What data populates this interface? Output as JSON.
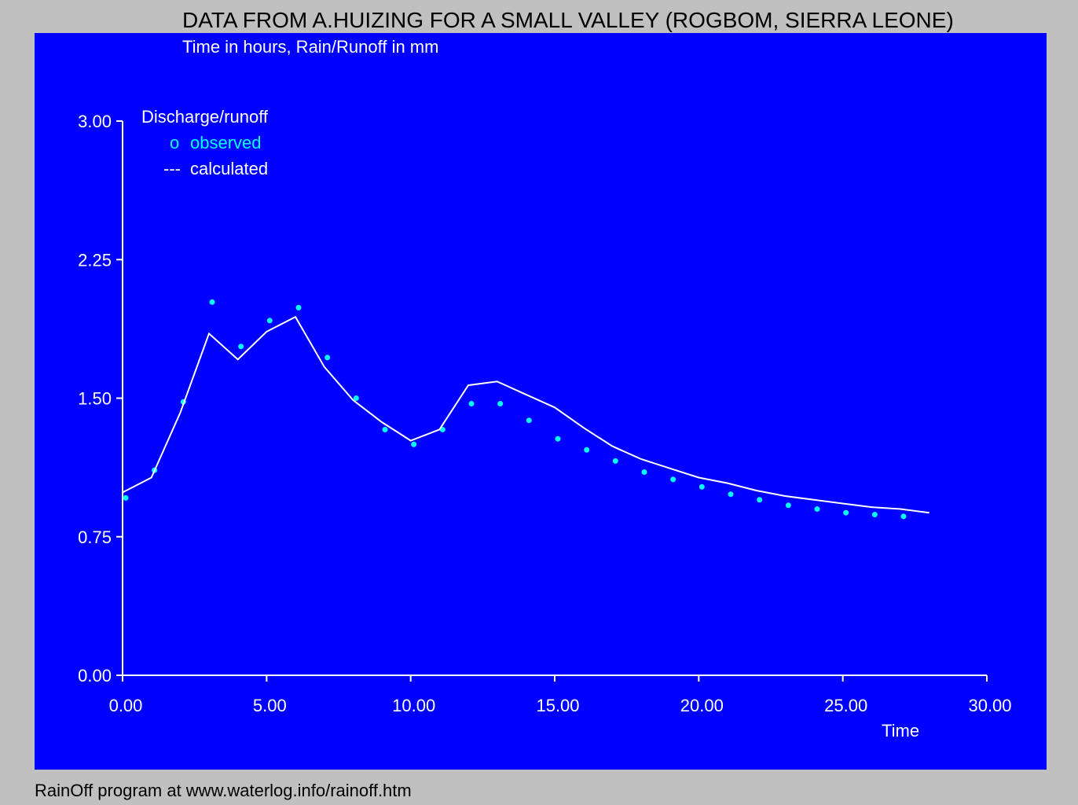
{
  "footer": "RainOff program at www.waterlog.info/rainoff.htm",
  "colors": {
    "window_bg": "#c0c0c0",
    "plot_bg": "#0000ff",
    "axes": "#ffffff",
    "observed": "#00ffff",
    "calculated": "#ffffff",
    "text": "#ffffff",
    "title": "#000000"
  },
  "chart_data": {
    "type": "line",
    "title": "DATA FROM A.HUIZING FOR A SMALL VALLEY (ROGBOM, SIERRA LEONE)",
    "subtitle": "Time in hours, Rain/Runoff in mm",
    "xlabel": "Time",
    "ylabel": "",
    "xlim": [
      0,
      30
    ],
    "ylim": [
      0,
      3
    ],
    "x_ticks": [
      "0.00",
      "5.00",
      "10.00",
      "15.00",
      "20.00",
      "25.00",
      "30.00"
    ],
    "y_ticks": [
      "0.00",
      "0.75",
      "1.50",
      "2.25",
      "3.00"
    ],
    "grid": false,
    "legend": {
      "title": "Discharge/runoff",
      "position": "top-left",
      "entries": [
        {
          "marker": "o",
          "label": "observed",
          "color": "#00ffff"
        },
        {
          "marker": "---",
          "label": "calculated",
          "color": "#ffffff"
        }
      ]
    },
    "series": [
      {
        "name": "observed",
        "style": "points",
        "x": [
          0,
          1,
          2,
          3,
          4,
          5,
          6,
          7,
          8,
          9,
          10,
          11,
          12,
          13,
          14,
          15,
          16,
          17,
          18,
          19,
          20,
          21,
          22,
          23,
          24,
          25,
          26,
          27
        ],
        "y": [
          0.96,
          1.11,
          1.48,
          2.02,
          1.78,
          1.92,
          1.99,
          1.72,
          1.5,
          1.33,
          1.25,
          1.33,
          1.47,
          1.47,
          1.38,
          1.28,
          1.22,
          1.16,
          1.1,
          1.06,
          1.02,
          0.98,
          0.95,
          0.92,
          0.9,
          0.88,
          0.87,
          0.86
        ]
      },
      {
        "name": "calculated",
        "style": "line",
        "x": [
          0,
          1,
          2,
          3,
          4,
          5,
          6,
          7,
          8,
          9,
          10,
          11,
          12,
          13,
          14,
          15,
          16,
          17,
          18,
          19,
          20,
          21,
          22,
          23,
          24,
          25,
          26,
          27,
          28
        ],
        "y": [
          0.99,
          1.07,
          1.42,
          1.85,
          1.71,
          1.86,
          1.94,
          1.67,
          1.49,
          1.37,
          1.27,
          1.33,
          1.57,
          1.59,
          1.52,
          1.45,
          1.34,
          1.24,
          1.17,
          1.12,
          1.07,
          1.04,
          1.0,
          0.97,
          0.95,
          0.93,
          0.91,
          0.9,
          0.88
        ]
      }
    ]
  }
}
